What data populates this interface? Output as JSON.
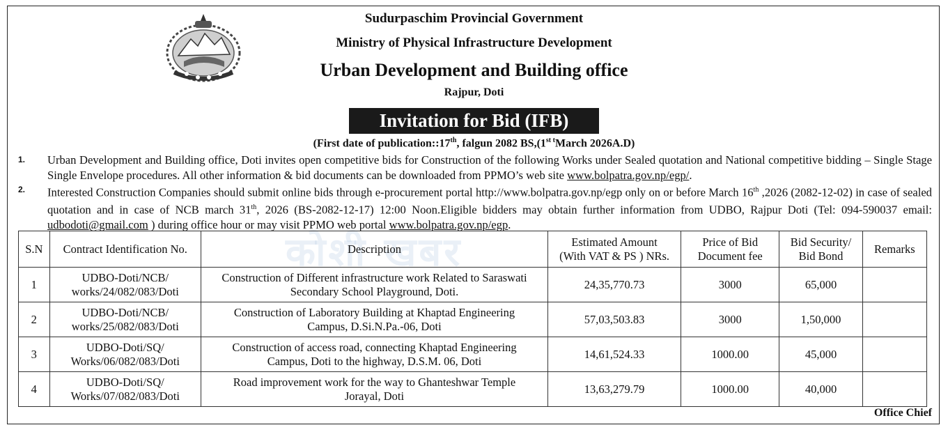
{
  "header": {
    "line1": "Sudurpaschim Provincial Government",
    "line2": "Ministry of Physical Infrastructure Development",
    "office": "Urban Development and Building office",
    "location": "Rajpur, Doti"
  },
  "notice_title": "Invitation for Bid (IFB)",
  "publication": {
    "prefix": "(First date of publication::17",
    "sup1": "th",
    "middle": ", falgun 2082 BS,(1",
    "sup2": "st t",
    "suffix": "March 2026A.D)"
  },
  "paragraphs": [
    {
      "number": "1.",
      "text": "Urban Development and Building office, Doti invites open competitive bids for Construction of the following Works under Sealed quotation and National competitive bidding – Single Stage Single Envelope procedures. All other information & bid documents can be downloaded from PPMO’s web site ",
      "link": "www.bolpatra.gov.np/egp/",
      "end": "."
    },
    {
      "number": "2.",
      "t1": "Interested Construction Companies should submit online bids through e-procurement portal http://www.bolpatra.gov.np/egp only on or before March 16",
      "s1": "th",
      "t2": " ,2026 (2082-12-02) in case of sealed quotation and in case of NCB  march 31",
      "s2": "th",
      "t3": ", 2026 (BS-2082-12-17) 12:00 Noon.Eligible bidders may obtain further information from UDBO, Rajpur Doti (Tel: 094-590037 email: ",
      "email": "udbodoti@gmail.com",
      "t4": " ) during office hour or may visit PPMO web portal ",
      "link": "www.bolpatra.gov.np/egp",
      "end": "."
    }
  ],
  "table": {
    "headers": {
      "sn": "S.N",
      "contract_id": "Contract Identification No.",
      "description": "Description",
      "amount_l1": "Estimated Amount",
      "amount_l2": "(With VAT & PS ) NRs.",
      "fee_l1": "Price of Bid",
      "fee_l2": "Document fee",
      "security_l1": "Bid Security/",
      "security_l2": "Bid Bond",
      "remarks": "Remarks"
    },
    "rows": [
      {
        "sn": "1",
        "id_l1": "UDBO-Doti/NCB/",
        "id_l2": "works/24/082/083/Doti",
        "desc_l1": "Construction of Different infrastructure work Related to  Saraswati",
        "desc_l2": "Secondary School Playground, Doti.",
        "amount": "24,35,770.73",
        "fee": "3000",
        "security": "65,000",
        "remarks": ""
      },
      {
        "sn": "2",
        "id_l1": "UDBO-Doti/NCB/",
        "id_l2": "works/25/082/083/Doti",
        "desc_l1": "Construction of Laboratory Building at Khaptad Engineering",
        "desc_l2": "Campus, D.Si.N.Pa.-06, Doti",
        "amount": "57,03,503.83",
        "fee": "3000",
        "security": "1,50,000",
        "remarks": ""
      },
      {
        "sn": "3",
        "id_l1": "UDBO-Doti/SQ/",
        "id_l2": "Works/06/082/083/Doti",
        "desc_l1": "Construction of access road, connecting Khaptad Engineering",
        "desc_l2": "Campus, Doti to the highway, D.S.M. 06, Doti",
        "amount": "14,61,524.33",
        "fee": "1000.00",
        "security": "45,000",
        "remarks": ""
      },
      {
        "sn": "4",
        "id_l1": "UDBO-Doti/SQ/",
        "id_l2": "Works/07/082/083/Doti",
        "desc_l1": "Road improvement work for the way to Ghanteshwar Temple",
        "desc_l2": "Jorayal, Doti",
        "amount": "13,63,279.79",
        "fee": "1000.00",
        "security": "40,000",
        "remarks": ""
      }
    ]
  },
  "signature": "Office Chief",
  "watermark": "कोशी  खबर",
  "emblem_icon": "nepal-government-emblem-icon",
  "colors": {
    "ink": "#111111",
    "title_box": "#1a1a1a"
  }
}
